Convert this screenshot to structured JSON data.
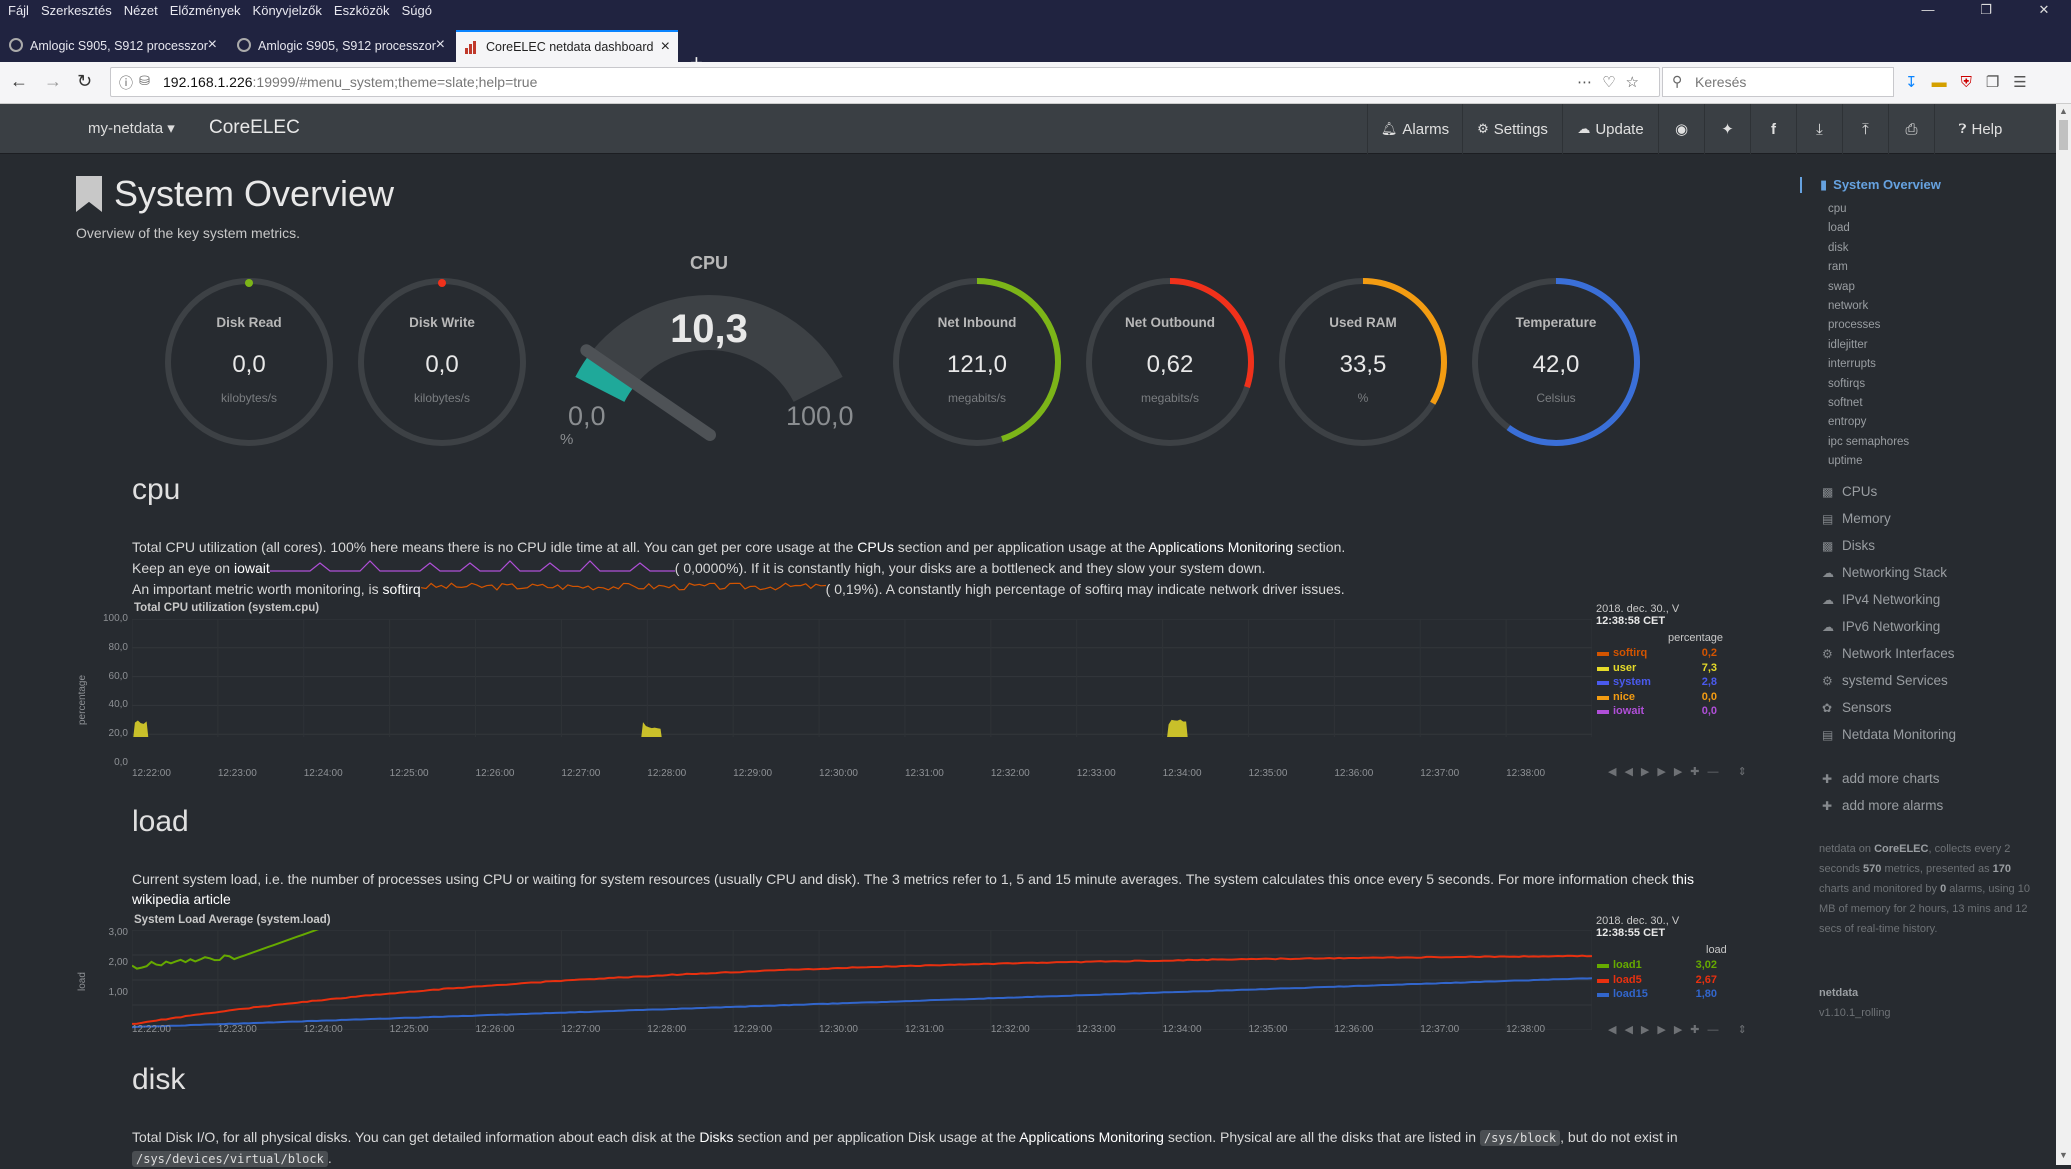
{
  "browser": {
    "menu": [
      "Fájl",
      "Szerkesztés",
      "Nézet",
      "Előzmények",
      "Könyvjelzők",
      "Eszközök",
      "Súgó"
    ],
    "tabs": [
      {
        "title": "Amlogic S905, S912 processzor"
      },
      {
        "title": "Amlogic S905, S912 processzor"
      },
      {
        "title": "CoreELEC netdata dashboard"
      }
    ],
    "url_host": "192.168.1.226",
    "url_rest": ":19999/#menu_system;theme=slate;help=true",
    "search_placeholder": "Keresés"
  },
  "nav": {
    "brand": "my-netdata",
    "host": "CoreELEC",
    "alarms": "Alarms",
    "settings": "Settings",
    "update": "Update",
    "help": "Help"
  },
  "overview": {
    "title": "System Overview",
    "subtitle": "Overview of the key system metrics."
  },
  "gauges": {
    "disk_read": {
      "label": "Disk Read",
      "value": "0,0",
      "unit": "kilobytes/s"
    },
    "disk_write": {
      "label": "Disk Write",
      "value": "0,0",
      "unit": "kilobytes/s"
    },
    "cpu": {
      "label": "CPU",
      "value": "10,3",
      "min": "0,0",
      "max": "100,0",
      "unit": "%",
      "fraction": 0.103
    },
    "net_inbound": {
      "label": "Net Inbound",
      "value": "121,0",
      "unit": "megabits/s",
      "fraction": 0.45,
      "color": "#7cb518"
    },
    "net_outbound": {
      "label": "Net Outbound",
      "value": "0,62",
      "unit": "megabits/s",
      "fraction": 0.3,
      "color": "#f0311b"
    },
    "used_ram": {
      "label": "Used RAM",
      "value": "33,5",
      "unit": "%",
      "fraction": 0.335,
      "color": "#f39c12"
    },
    "temperature": {
      "label": "Temperature",
      "value": "42,0",
      "unit": "Celsius",
      "fraction": 0.6,
      "color": "#3a6fd8"
    }
  },
  "cpu_section": {
    "heading": "cpu",
    "p1a": "Total CPU utilization (all cores). 100% here means there is no CPU idle time at all. You can get per core usage at the ",
    "p1b": "CPUs",
    "p1c": " section and per application usage at the ",
    "p1d": "Applications Monitoring",
    "p1e": " section.",
    "p2a": "Keep an eye on ",
    "p2b": "iowait",
    "p2c": "( 0,0000%). If it is constantly high, your disks are a bottleneck and they slow your system down.",
    "p3a": "An important metric worth monitoring, is ",
    "p3b": "softirq",
    "p3c": "( 0,19%). A constantly high percentage of softirq may indicate network driver issues.",
    "chart_title": "Total CPU utilization (system.cpu)",
    "ylabel": "percentage",
    "legend_date": "2018. dec. 30., V",
    "legend_time": "12:38:58 CET",
    "legend_units": "percentage",
    "legend": [
      {
        "name": "softirq",
        "value": "0,2",
        "color": "#d35400"
      },
      {
        "name": "user",
        "value": "7,3",
        "color": "#e6db29"
      },
      {
        "name": "system",
        "value": "2,8",
        "color": "#4a5aed"
      },
      {
        "name": "nice",
        "value": "0,0",
        "color": "#f39c12"
      },
      {
        "name": "iowait",
        "value": "0,0",
        "color": "#b04fd8"
      }
    ],
    "yticks": [
      "100,0",
      "80,0",
      "60,0",
      "40,0",
      "20,0",
      "0,0"
    ]
  },
  "load_section": {
    "heading": "load",
    "p1a": "Current system load, i.e. the number of processes using CPU or waiting for system resources (usually CPU and disk). The 3 metrics refer to 1, 5 and 15 minute averages. The system calculates this once every 5 seconds. For more information check ",
    "p1b": "this",
    "p1c": "wikipedia article",
    "chart_title": "System Load Average (system.load)",
    "ylabel": "load",
    "legend_date": "2018. dec. 30., V",
    "legend_time": "12:38:55 CET",
    "legend_units": "load",
    "legend": [
      {
        "name": "load1",
        "value": "3,02",
        "color": "#66aa00"
      },
      {
        "name": "load5",
        "value": "2,67",
        "color": "#e8300f"
      },
      {
        "name": "load15",
        "value": "1,80",
        "color": "#3266cc"
      }
    ],
    "yticks": [
      "3,00",
      "2,00",
      "1,00"
    ]
  },
  "disk_section": {
    "heading": "disk",
    "p1a": "Total Disk I/O, for all physical disks. You can get detailed information about each disk at the ",
    "p1b": "Disks",
    "p1c": " section and per application Disk usage at the ",
    "p1d": "Applications Monitoring",
    "p1e": " section. Physical are all the disks that are listed in ",
    "code1": "/sys/block",
    "p1f": ", but do not exist in",
    "code2": "/sys/devices/virtual/block"
  },
  "xticks": [
    "12:22:00",
    "12:23:00",
    "12:24:00",
    "12:25:00",
    "12:26:00",
    "12:27:00",
    "12:28:00",
    "12:29:00",
    "12:30:00",
    "12:31:00",
    "12:32:00",
    "12:33:00",
    "12:34:00",
    "12:35:00",
    "12:36:00",
    "12:37:00",
    "12:38:00"
  ],
  "sidebar": {
    "active": "System Overview",
    "subitems": [
      "cpu",
      "load",
      "disk",
      "ram",
      "swap",
      "network",
      "processes",
      "idlejitter",
      "interrupts",
      "softirqs",
      "softnet",
      "entropy",
      "ipc semaphores",
      "uptime"
    ],
    "items": [
      "CPUs",
      "Memory",
      "Disks",
      "Networking Stack",
      "IPv4 Networking",
      "IPv6 Networking",
      "Network Interfaces",
      "systemd Services",
      "Sensors",
      "Netdata Monitoring"
    ],
    "add_charts": "add more charts",
    "add_alarms": "add more alarms",
    "note_a": "netdata on ",
    "note_host": "CoreELEC",
    "note_b": ", collects every 2 seconds ",
    "note_metrics": "570",
    "note_c": " metrics, presented as ",
    "note_charts": "170",
    "note_d": " charts and monitored by ",
    "note_alarms": "0",
    "note_e": " alarms, using 10 MB of memory for 2 hours, 13 mins and 12 secs of real-time history.",
    "version_label": "netdata",
    "version": "v1.10.1_rolling"
  }
}
